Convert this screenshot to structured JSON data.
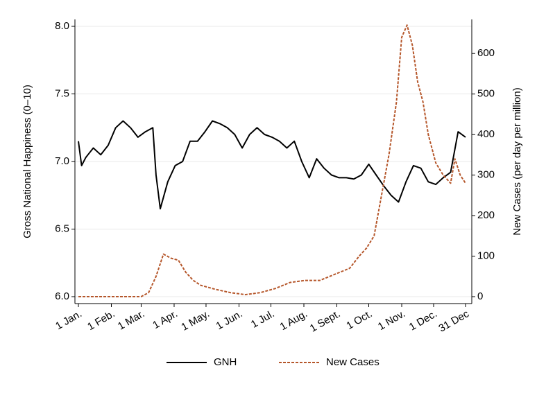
{
  "chart_data": {
    "type": "line",
    "y_label": "Gross National Happiness (0–10)",
    "y2_label": "New Cases (per day per million)",
    "xlim": [
      1,
      365
    ],
    "xticks": [
      {
        "value": 1,
        "label": "1 Jan."
      },
      {
        "value": 32,
        "label": "1 Feb."
      },
      {
        "value": 60,
        "label": "1 Mar."
      },
      {
        "value": 91,
        "label": "1 Apr."
      },
      {
        "value": 121,
        "label": "1 May."
      },
      {
        "value": 152,
        "label": "1 Jun."
      },
      {
        "value": 182,
        "label": "1 Jul."
      },
      {
        "value": 213,
        "label": "1 Aug."
      },
      {
        "value": 244,
        "label": "1 Sept."
      },
      {
        "value": 274,
        "label": "1 Oct."
      },
      {
        "value": 305,
        "label": "1 Nov."
      },
      {
        "value": 335,
        "label": "1 Dec."
      },
      {
        "value": 365,
        "label": "31 Dec"
      }
    ],
    "ylim": [
      6,
      8
    ],
    "yticks": [
      {
        "value": 6,
        "label": "6.0"
      },
      {
        "value": 6.5,
        "label": "6.5"
      },
      {
        "value": 7,
        "label": "7.0"
      },
      {
        "value": 7.5,
        "label": "7.5"
      },
      {
        "value": 8,
        "label": "8.0"
      }
    ],
    "y2lim": [
      0,
      667
    ],
    "y2ticks": [
      0,
      100,
      200,
      300,
      400,
      500,
      600
    ],
    "grid": true,
    "legend": "bottom",
    "series": [
      {
        "name": "GNH",
        "color": "#000000",
        "dash": "solid",
        "x": [
          1,
          4,
          8,
          15,
          22,
          29,
          36,
          43,
          50,
          57,
          64,
          71,
          74,
          78,
          85,
          92,
          99,
          106,
          113,
          120,
          127,
          134,
          141,
          148,
          155,
          162,
          169,
          176,
          183,
          190,
          197,
          204,
          211,
          218,
          225,
          232,
          239,
          246,
          253,
          260,
          267,
          274,
          281,
          288,
          295,
          302,
          309,
          316,
          323,
          330,
          337,
          344,
          351,
          358,
          365
        ],
        "values": [
          7.15,
          6.97,
          7.03,
          7.1,
          7.05,
          7.12,
          7.25,
          7.3,
          7.25,
          7.18,
          7.22,
          7.25,
          6.9,
          6.65,
          6.85,
          6.97,
          7.0,
          7.15,
          7.15,
          7.22,
          7.3,
          7.28,
          7.25,
          7.2,
          7.1,
          7.2,
          7.25,
          7.2,
          7.18,
          7.15,
          7.1,
          7.15,
          7.0,
          6.88,
          7.02,
          6.95,
          6.9,
          6.88,
          6.88,
          6.87,
          6.9,
          6.98,
          6.9,
          6.82,
          6.75,
          6.7,
          6.85,
          6.97,
          6.95,
          6.85,
          6.83,
          6.88,
          6.92,
          7.22,
          7.18
        ]
      },
      {
        "name": "New Cases",
        "color": "#b5562a",
        "dash": "dashed",
        "axis": "y2",
        "x": [
          1,
          60,
          67,
          74,
          81,
          88,
          95,
          102,
          109,
          116,
          130,
          144,
          158,
          172,
          186,
          200,
          214,
          228,
          242,
          256,
          265,
          272,
          279,
          286,
          293,
          300,
          305,
          310,
          315,
          320,
          325,
          330,
          337,
          344,
          351,
          355,
          360,
          365
        ],
        "values": [
          0,
          0,
          10,
          50,
          105,
          95,
          90,
          60,
          40,
          28,
          18,
          10,
          5,
          10,
          20,
          35,
          40,
          40,
          55,
          70,
          100,
          120,
          150,
          250,
          350,
          480,
          640,
          670,
          620,
          530,
          480,
          400,
          330,
          300,
          280,
          340,
          300,
          280
        ]
      }
    ]
  }
}
